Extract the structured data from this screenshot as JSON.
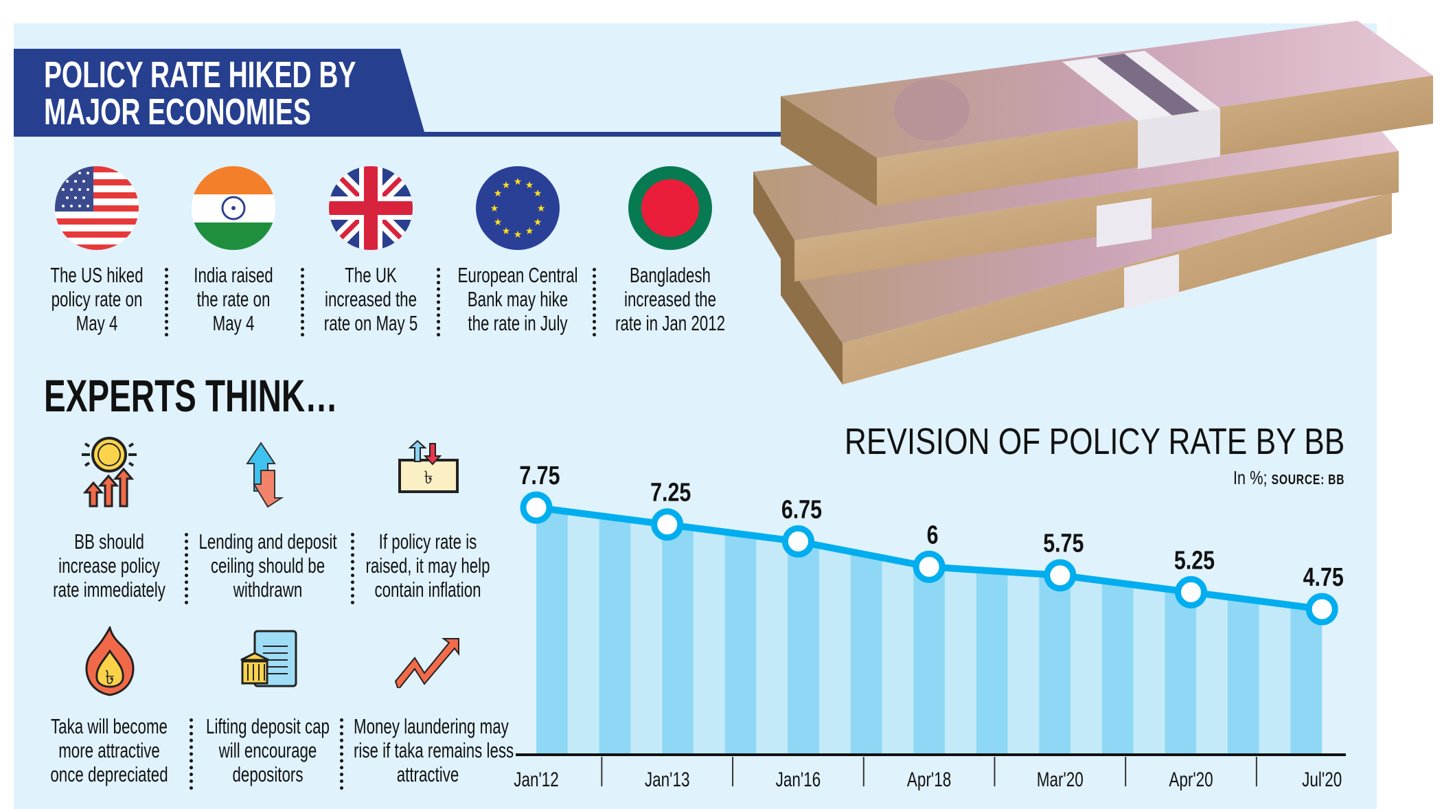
{
  "header": {
    "title_line1": "POLICY RATE HIKED BY",
    "title_line2": "MAJOR ECONOMIES"
  },
  "economies": [
    {
      "flag": "us-flag",
      "lines": [
        "The US hiked",
        "policy rate on",
        "May 4"
      ]
    },
    {
      "flag": "india-flag",
      "lines": [
        "India raised",
        "the rate on",
        "May 4"
      ]
    },
    {
      "flag": "uk-flag",
      "lines": [
        "The UK",
        "increased the",
        "rate on May 5"
      ]
    },
    {
      "flag": "eu-flag",
      "lines": [
        "European Central",
        "Bank may hike",
        "the rate in July"
      ]
    },
    {
      "flag": "bangladesh-flag",
      "lines": [
        "Bangladesh",
        "increased the",
        "rate in Jan 2012"
      ]
    }
  ],
  "experts": {
    "heading": "EXPERTS THINK…",
    "items": [
      {
        "icon": "coin-rising-arrows-icon",
        "lines": [
          "BB should",
          "increase policy",
          "rate immediately"
        ]
      },
      {
        "icon": "up-down-arrows-icon",
        "lines": [
          "Lending and deposit",
          "ceiling should be",
          "withdrawn"
        ]
      },
      {
        "icon": "taka-note-icon",
        "lines": [
          "If policy rate is",
          "raised, it may help",
          "contain inflation"
        ]
      },
      {
        "icon": "taka-fire-icon",
        "lines": [
          "Taka will become",
          "more attractive",
          "once depreciated"
        ]
      },
      {
        "icon": "bank-document-icon",
        "lines": [
          "Lifting deposit cap",
          "will encourage",
          "depositors"
        ]
      },
      {
        "icon": "trend-up-arrow-icon",
        "lines": [
          "Money laundering may",
          "rise if taka remains less",
          "attractive"
        ]
      }
    ]
  },
  "colors": {
    "banner": "#263f8f",
    "panel": "#e0f2fc",
    "line": "#00aeef",
    "stripe_dark": "#8fd8f5",
    "stripe_light": "#c4eaf9"
  },
  "chart_data": {
    "type": "line",
    "title": "REVISION OF POLICY RATE BY BB",
    "unit": "In %;",
    "source": "SOURCE: BB",
    "categories": [
      "Jan'12",
      "Jan'13",
      "Jan'16",
      "Apr'18",
      "Mar'20",
      "Apr'20",
      "Jul'20"
    ],
    "values": [
      7.75,
      7.25,
      6.75,
      6,
      5.75,
      5.25,
      4.75
    ],
    "labels": [
      "7.75",
      "7.25",
      "6.75",
      "6",
      "5.75",
      "5.25",
      "4.75"
    ],
    "grid": false,
    "legend": "none",
    "fill": "striped-area"
  }
}
